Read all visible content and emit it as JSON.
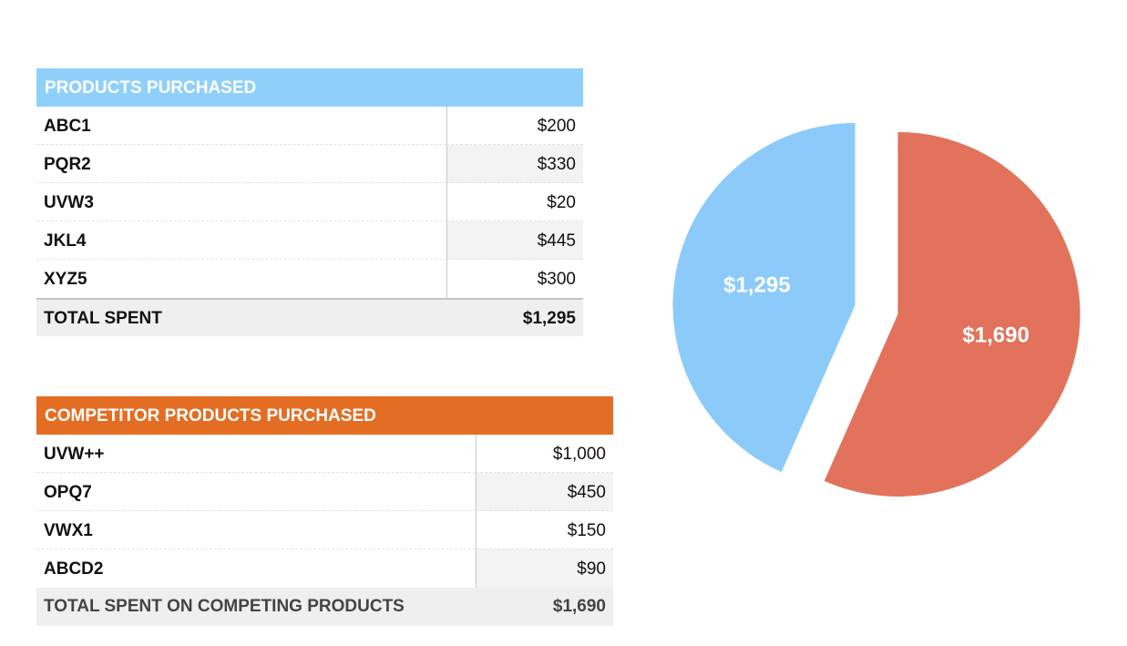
{
  "products": {
    "title": "PRODUCTS PURCHASED",
    "rows": [
      {
        "name": "ABC1",
        "value": "$200"
      },
      {
        "name": "PQR2",
        "value": "$330"
      },
      {
        "name": "UVW3",
        "value": "$20"
      },
      {
        "name": "JKL4",
        "value": "$445"
      },
      {
        "name": "XYZ5",
        "value": "$300"
      }
    ],
    "total_label": "TOTAL SPENT",
    "total_value": "$1,295"
  },
  "competitors": {
    "title": "COMPETITOR PRODUCTS PURCHASED",
    "rows": [
      {
        "name": "UVW++",
        "value": "$1,000"
      },
      {
        "name": "OPQ7",
        "value": "$450"
      },
      {
        "name": "VWX1",
        "value": "$150"
      },
      {
        "name": "ABCD2",
        "value": "$90"
      }
    ],
    "total_label": "TOTAL SPENT ON COMPETING PRODUCTS",
    "total_value": "$1,690"
  },
  "chart_data": {
    "type": "pie",
    "categories": [
      "",
      ""
    ],
    "values": [
      1295,
      1690
    ],
    "labels": [
      "$1,295",
      "$1,690"
    ],
    "colors": [
      "#8ccbf9",
      "#e2725b"
    ],
    "exploded": true,
    "title": "",
    "legend": "none"
  }
}
